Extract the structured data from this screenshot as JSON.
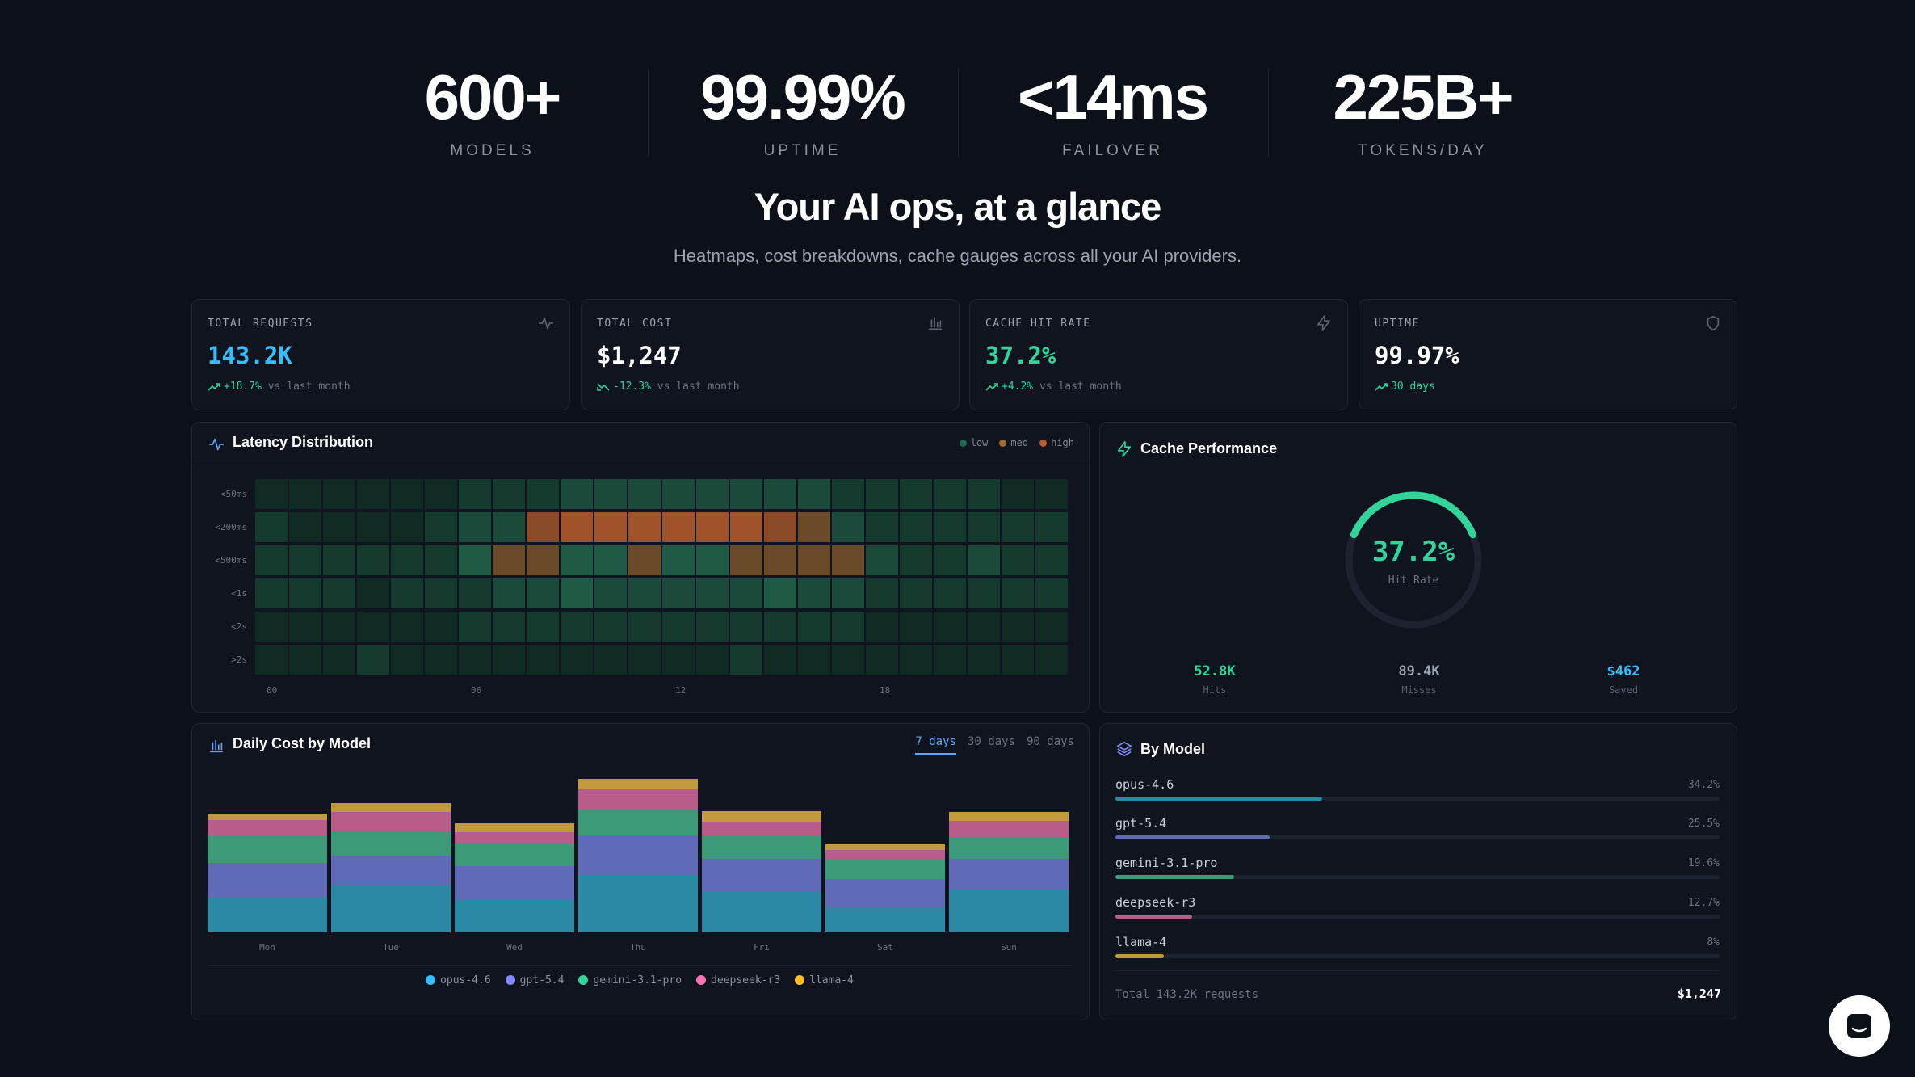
{
  "hero_stats": [
    {
      "value": "600+",
      "label": "MODELS"
    },
    {
      "value": "99.99%",
      "label": "UPTIME"
    },
    {
      "value": "<14ms",
      "label": "FAILOVER"
    },
    {
      "value": "225B+",
      "label": "TOKENS/DAY"
    }
  ],
  "headline": "Your AI ops, at a glance",
  "subheadline": "Heatmaps, cost breakdowns, cache gauges across all your AI providers.",
  "kpis": [
    {
      "label": "TOTAL REQUESTS",
      "value": "143.2K",
      "delta": "+18.7%",
      "suffix": "vs last month",
      "value_color": "#38bdf8",
      "icon": "activity-icon"
    },
    {
      "label": "TOTAL COST",
      "value": "$1,247",
      "delta": "-12.3%",
      "suffix": "vs last month",
      "value_color": "#ffffff",
      "icon": "bar-chart-icon"
    },
    {
      "label": "CACHE HIT RATE",
      "value": "37.2%",
      "delta": "+4.2%",
      "suffix": "vs last month",
      "value_color": "#34d399",
      "icon": "lightning-icon"
    },
    {
      "label": "UPTIME",
      "value": "99.97%",
      "delta": "30 days",
      "suffix": "",
      "value_color": "#ffffff",
      "icon": "shield-icon"
    }
  ],
  "latency": {
    "title": "Latency Distribution",
    "legend": [
      "low",
      "med",
      "high"
    ],
    "legend_colors": [
      "#1f6b4f",
      "#a86a2c",
      "#c0582a"
    ],
    "rows": [
      "<50ms",
      "<200ms",
      "<500ms",
      "<1s",
      "<2s",
      ">2s"
    ],
    "col_labels": [
      "00",
      "06",
      "12",
      "18"
    ],
    "grid": [
      [
        0,
        0,
        0,
        0,
        0,
        0,
        1,
        1,
        1,
        2,
        2,
        2,
        2,
        2,
        2,
        2,
        2,
        1,
        1,
        1,
        1,
        1,
        0,
        0
      ],
      [
        1,
        0,
        0,
        0,
        0,
        1,
        2,
        2,
        5,
        6,
        6,
        6,
        6,
        6,
        6,
        5,
        4,
        2,
        1,
        1,
        1,
        1,
        1,
        1
      ],
      [
        1,
        1,
        1,
        1,
        1,
        1,
        3,
        4,
        4,
        3,
        3,
        4,
        3,
        3,
        4,
        4,
        4,
        4,
        2,
        1,
        1,
        2,
        1,
        1
      ],
      [
        1,
        1,
        1,
        0,
        1,
        1,
        1,
        2,
        2,
        3,
        2,
        2,
        2,
        2,
        2,
        3,
        2,
        2,
        1,
        1,
        1,
        1,
        1,
        1
      ],
      [
        0,
        0,
        0,
        0,
        0,
        0,
        1,
        1,
        1,
        1,
        1,
        1,
        1,
        1,
        1,
        1,
        1,
        1,
        0,
        0,
        0,
        0,
        0,
        0
      ],
      [
        0,
        0,
        0,
        1,
        0,
        0,
        0,
        0,
        0,
        0,
        0,
        0,
        0,
        0,
        1,
        0,
        0,
        0,
        0,
        0,
        0,
        0,
        0,
        0
      ]
    ]
  },
  "cache": {
    "title": "Cache Performance",
    "rate": "37.2%",
    "rate_fraction": 0.372,
    "rate_label": "Hit Rate",
    "stats": [
      {
        "value": "52.8K",
        "label": "Hits",
        "color": "#34d399"
      },
      {
        "value": "89.4K",
        "label": "Misses",
        "color": "#9aa3b2"
      },
      {
        "value": "$462",
        "label": "Saved",
        "color": "#38bdf8"
      }
    ]
  },
  "daily_cost": {
    "title": "Daily Cost by Model",
    "tabs": [
      "7 days",
      "30 days",
      "90 days"
    ],
    "active_tab": "7 days"
  },
  "chart_data": {
    "type": "bar",
    "stacked": true,
    "categories": [
      "Mon",
      "Tue",
      "Wed",
      "Thu",
      "Fri",
      "Sat",
      "Sun"
    ],
    "series": [
      {
        "name": "opus-4.6",
        "color": "#2a8aa6",
        "values": [
          44,
          59,
          40,
          71,
          50,
          32,
          53
        ]
      },
      {
        "name": "gpt-5.4",
        "color": "#5f6bb8",
        "values": [
          42,
          36,
          42,
          49,
          41,
          34,
          38
        ]
      },
      {
        "name": "gemini-3.1-pro",
        "color": "#3d9a78",
        "values": [
          34,
          30,
          27,
          32,
          30,
          24,
          26
        ]
      },
      {
        "name": "deepseek-r3",
        "color": "#b85c8a",
        "values": [
          19,
          24,
          15,
          25,
          16,
          12,
          21
        ]
      },
      {
        "name": "llama-4",
        "color": "#c19a3e",
        "values": [
          8,
          11,
          11,
          13,
          13,
          8,
          11
        ]
      }
    ],
    "ylim": [
      0,
      200
    ],
    "grid": false,
    "legend_position": "bottom"
  },
  "by_model": {
    "title": "By Model",
    "models": [
      {
        "name": "opus-4.6",
        "pct": "34.2%",
        "share": 0.342,
        "color": "#2a8aa6"
      },
      {
        "name": "gpt-5.4",
        "pct": "25.5%",
        "share": 0.255,
        "color": "#5f6bb8"
      },
      {
        "name": "gemini-3.1-pro",
        "pct": "19.6%",
        "share": 0.196,
        "color": "#3d9a78"
      },
      {
        "name": "deepseek-r3",
        "pct": "12.7%",
        "share": 0.127,
        "color": "#b85c8a"
      },
      {
        "name": "llama-4",
        "pct": "8%",
        "share": 0.08,
        "color": "#c19a3e"
      }
    ],
    "total_label": "Total 143.2K requests",
    "total_value": "$1,247"
  }
}
